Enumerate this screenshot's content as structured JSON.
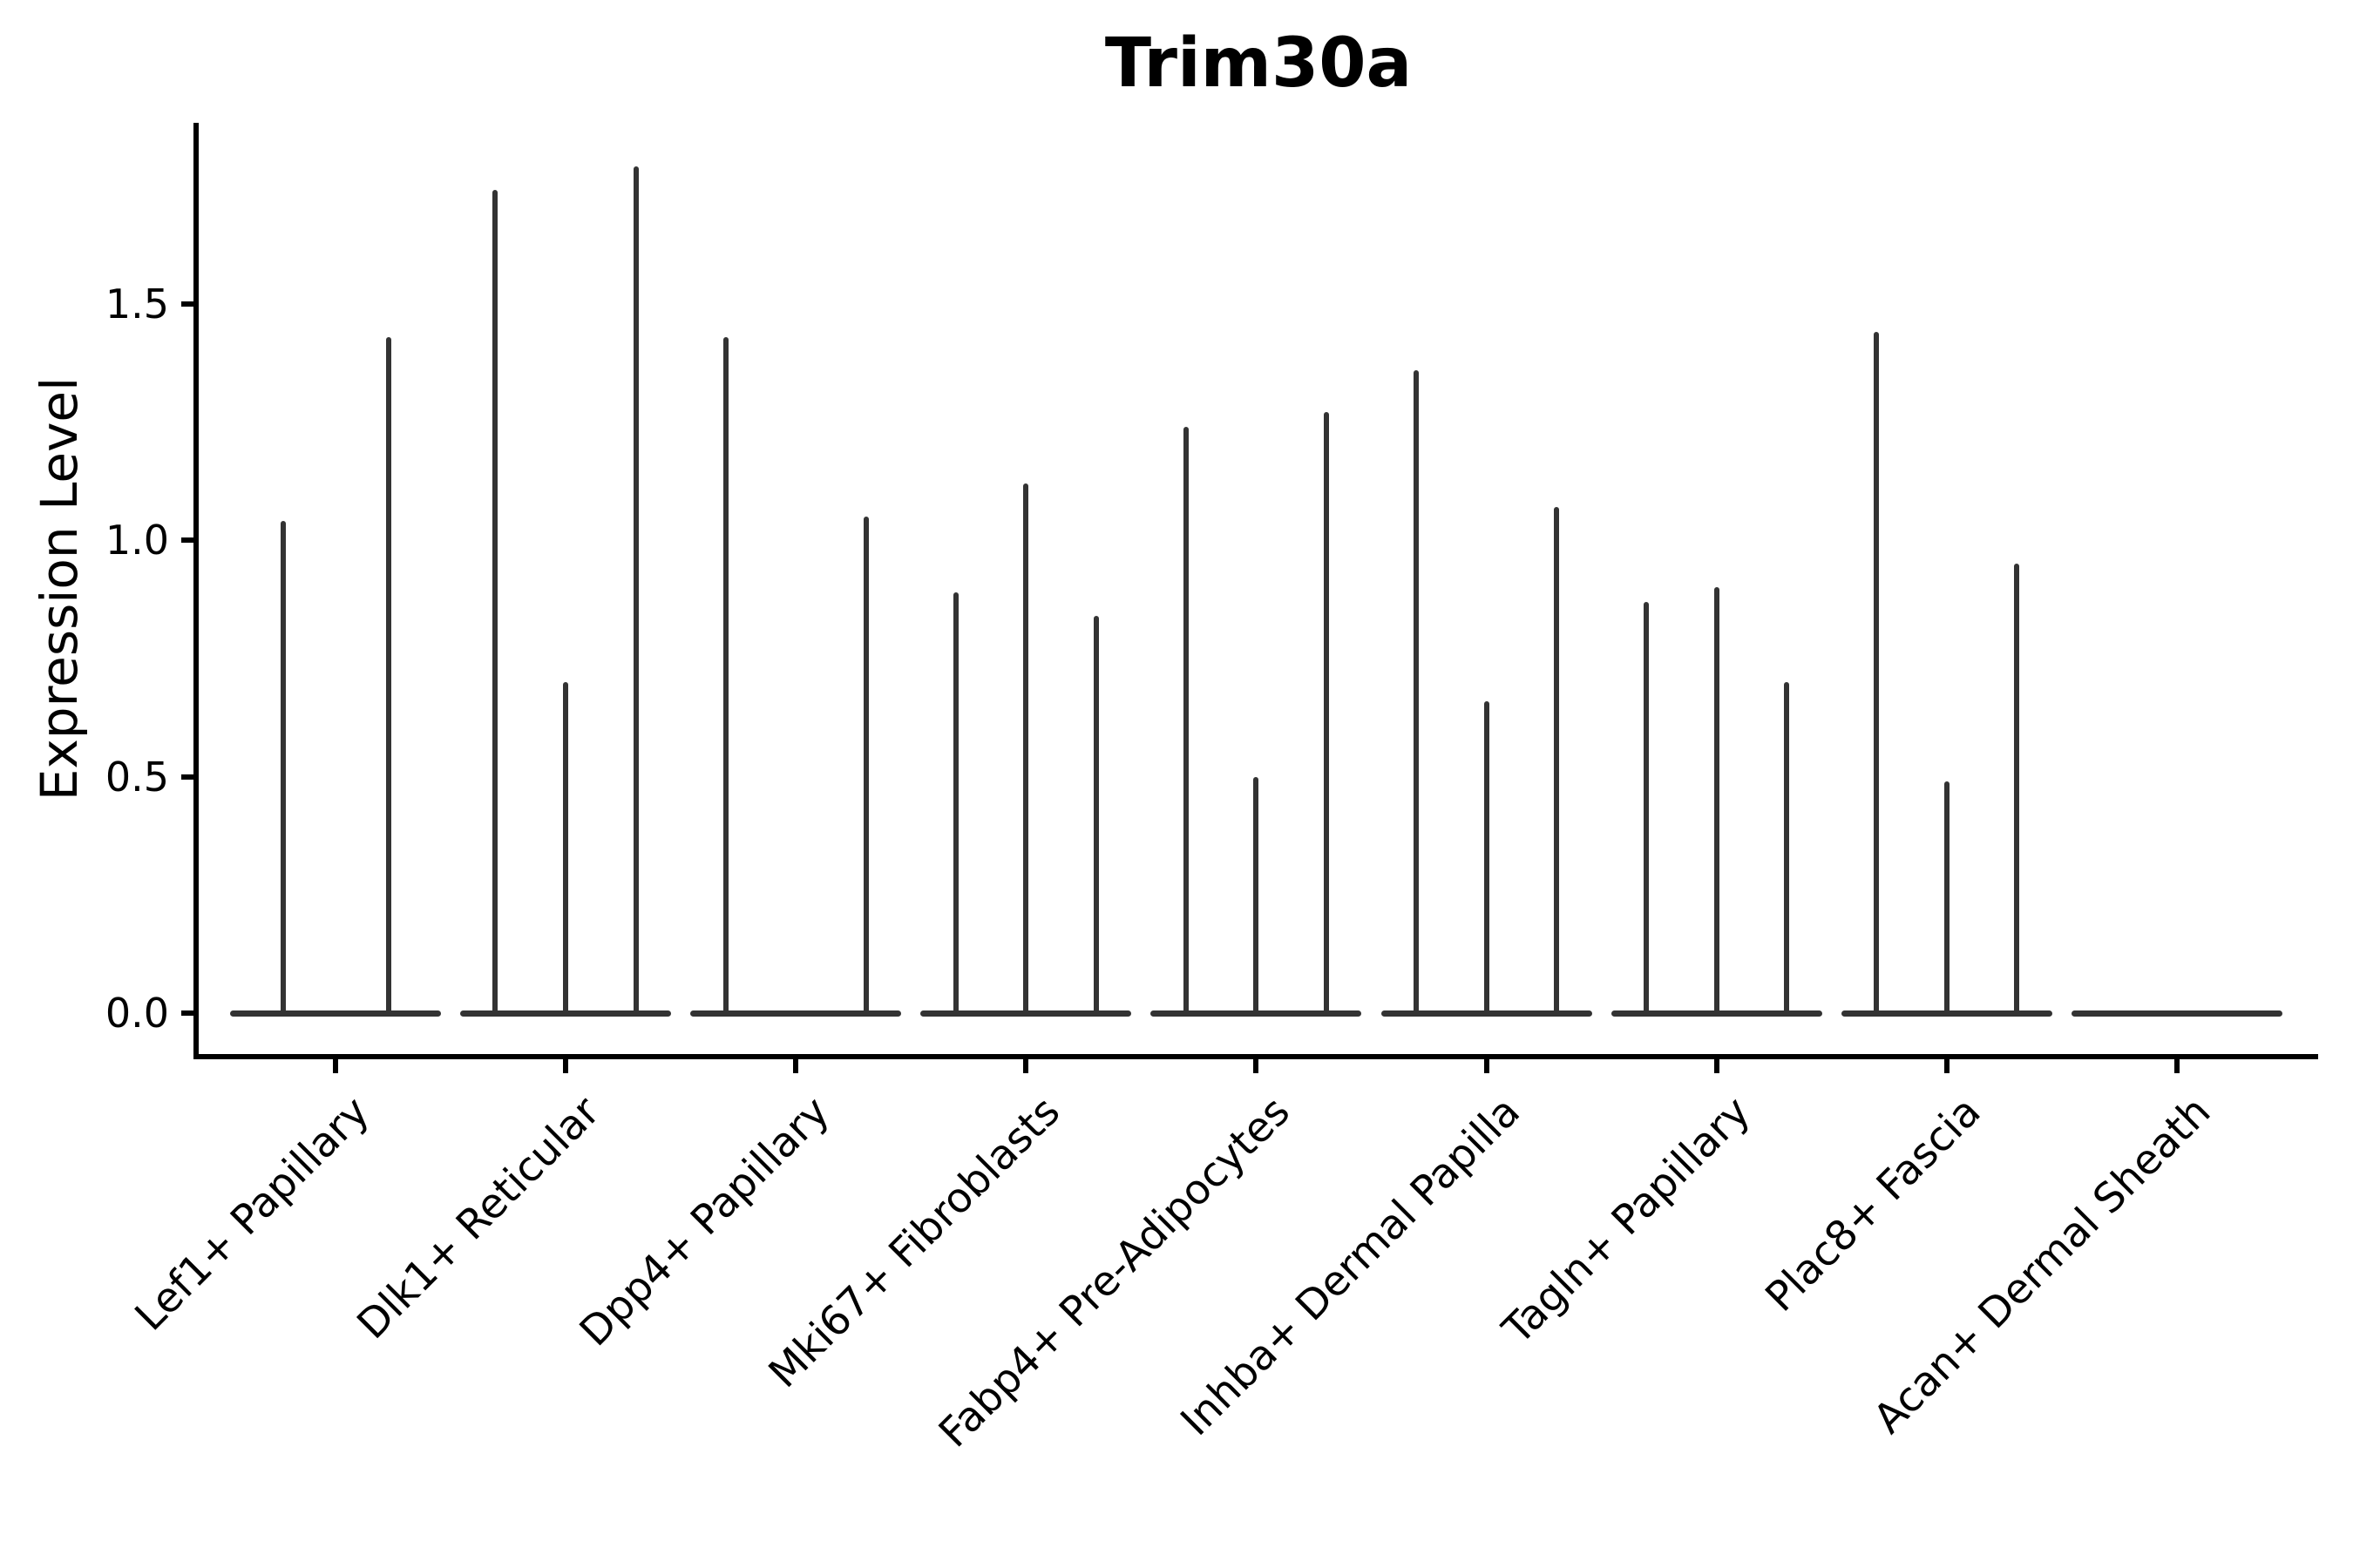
{
  "title": "Trim30a",
  "axes": {
    "ylabel": "Expression Level",
    "ytick_labels": [
      "0.0",
      "0.5",
      "1.0",
      "1.5"
    ]
  },
  "colors": {
    "background": "#ffffff",
    "axis": "#000000",
    "text": "#000000",
    "violin": "#333333"
  },
  "chart_data": {
    "type": "violin",
    "title": "Trim30a",
    "xlabel": "",
    "ylabel": "Expression Level",
    "ylim": [
      -0.09,
      1.88
    ],
    "yticks": [
      0.0,
      0.5,
      1.0,
      1.5
    ],
    "ytick_labels": [
      "0.0",
      "0.5",
      "1.0",
      "1.5"
    ],
    "grid": false,
    "legend": "none",
    "x_label_rotation": 45,
    "categories": [
      "Lef1+ Papillary",
      "Dlk1+ Reticular",
      "Dpp4+ Papillary",
      "Mki67+ Fibroblasts",
      "Fabp4+ Pre-Adipocytes",
      "Inhba+ Dermal Papilla",
      "Tagln+ Papillary",
      "Plac8+ Fascia",
      "Acan+ Dermal Sheath"
    ],
    "series": [
      {
        "category": "Lef1+ Papillary",
        "violin_max_values": [
          1.04,
          1.43
        ]
      },
      {
        "category": "Dlk1+ Reticular",
        "violin_max_values": [
          1.74,
          0.7,
          1.79
        ]
      },
      {
        "category": "Dpp4+ Papillary",
        "violin_max_values": [
          1.43,
          0.0,
          1.05
        ]
      },
      {
        "category": "Mki67+ Fibroblasts",
        "violin_max_values": [
          0.89,
          1.12,
          0.84
        ]
      },
      {
        "category": "Fabp4+ Pre-Adipocytes",
        "violin_max_values": [
          1.24,
          0.5,
          1.27
        ]
      },
      {
        "category": "Inhba+ Dermal Papilla",
        "violin_max_values": [
          1.36,
          0.66,
          1.07
        ]
      },
      {
        "category": "Tagln+ Papillary",
        "violin_max_values": [
          0.87,
          0.9,
          0.7
        ]
      },
      {
        "category": "Plac8+ Fascia",
        "violin_max_values": [
          1.44,
          0.49,
          0.95
        ]
      },
      {
        "category": "Acan+ Dermal Sheath",
        "violin_max_values": [
          0.0,
          0.0,
          0.0
        ]
      }
    ]
  }
}
